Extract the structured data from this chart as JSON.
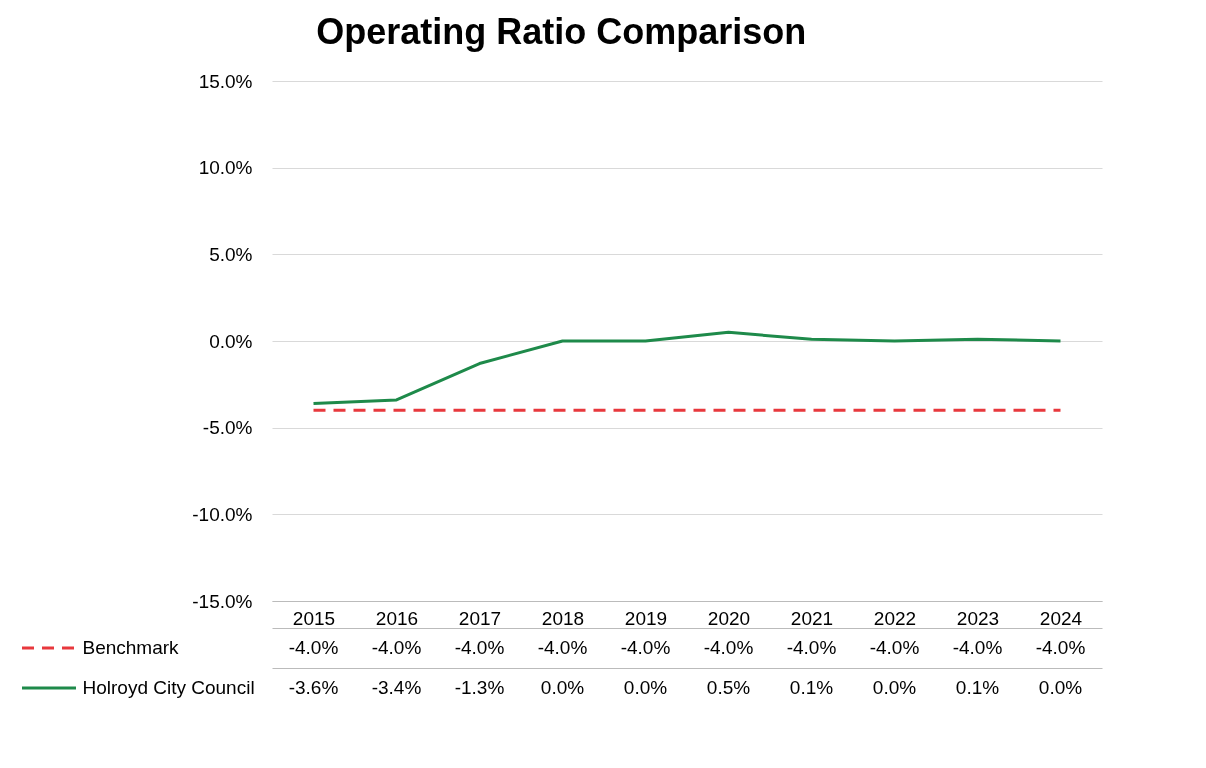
{
  "chart_data": {
    "type": "line",
    "title": "Operating Ratio Comparison",
    "categories": [
      "2015",
      "2016",
      "2017",
      "2018",
      "2019",
      "2020",
      "2021",
      "2022",
      "2023",
      "2024"
    ],
    "ylim": [
      -15,
      15
    ],
    "yticks": [
      {
        "value": -15,
        "label": "-15.0%"
      },
      {
        "value": -10,
        "label": "-10.0%"
      },
      {
        "value": -5,
        "label": "-5.0%"
      },
      {
        "value": 0,
        "label": "0.0%"
      },
      {
        "value": 5,
        "label": "5.0%"
      },
      {
        "value": 10,
        "label": "10.0%"
      },
      {
        "value": 15,
        "label": "15.0%"
      }
    ],
    "grid": "y",
    "legend": "bottom",
    "marker": "none",
    "series": [
      {
        "name": "Benchmark",
        "color": "#e8383d",
        "line_style": "dashed",
        "values": [
          -4.0,
          -4.0,
          -4.0,
          -4.0,
          -4.0,
          -4.0,
          -4.0,
          -4.0,
          -4.0,
          -4.0
        ],
        "value_labels": [
          "-4.0%",
          "-4.0%",
          "-4.0%",
          "-4.0%",
          "-4.0%",
          "-4.0%",
          "-4.0%",
          "-4.0%",
          "-4.0%",
          "-4.0%"
        ]
      },
      {
        "name": "Holroyd City Council",
        "color": "#1e8a4a",
        "line_style": "solid",
        "values": [
          -3.6,
          -3.4,
          -1.3,
          0.0,
          0.0,
          0.5,
          0.1,
          0.0,
          0.1,
          0.0
        ],
        "value_labels": [
          "-3.6%",
          "-3.4%",
          "-1.3%",
          "0.0%",
          "0.0%",
          "0.5%",
          "0.1%",
          "0.0%",
          "0.1%",
          "0.0%"
        ]
      }
    ]
  }
}
